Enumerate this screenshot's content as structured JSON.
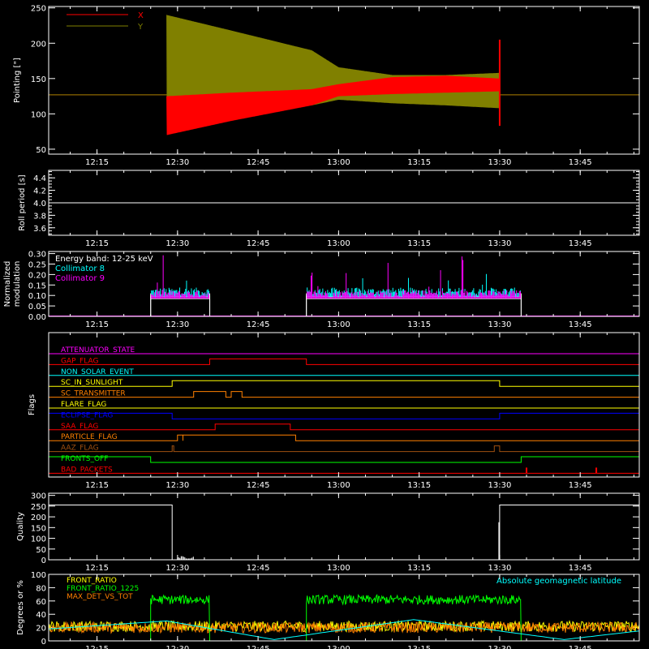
{
  "colors": {
    "background": "#000000",
    "axes": "#ffffff",
    "red": "#ff0000",
    "olive": "#808000",
    "cyan": "#00ffff",
    "magenta": "#ff00ff",
    "green": "#00ff00",
    "orange": "#ff8000",
    "yellow": "#ffff00",
    "blue": "#0000ff",
    "white": "#ffffff",
    "brown": "#a05010"
  },
  "time_axis": {
    "range": [
      "12:06",
      "13:56"
    ],
    "ticks": [
      "12:15",
      "12:30",
      "12:45",
      "13:00",
      "13:15",
      "13:30",
      "13:45"
    ]
  },
  "chart_data": [
    {
      "id": "pointing",
      "type": "line",
      "ylabel": "Pointing [\"]",
      "yticks": [
        50,
        100,
        150,
        200,
        250
      ],
      "ylim": [
        43,
        252
      ],
      "legend": {
        "position": "top-left",
        "entries": [
          "X",
          "Y"
        ]
      },
      "series": [
        {
          "name": "X",
          "color": "red",
          "baseline": 127,
          "start": "12:28",
          "end": "13:30",
          "envelope": {
            "time": [
              "12:28",
              "12:40",
              "12:55",
              "13:00",
              "13:10",
              "13:20",
              "13:30"
            ],
            "low": [
              70,
              90,
              112,
              125,
              128,
              130,
              132
            ],
            "high": [
              125,
              130,
              135,
              142,
              152,
              154,
              150
            ]
          },
          "spike_end": [
            83,
            205
          ]
        },
        {
          "name": "Y",
          "color": "olive",
          "baseline": 127,
          "start": "12:28",
          "end": "13:30",
          "envelope": {
            "time": [
              "12:28",
              "12:40",
              "12:55",
              "13:00",
              "13:10",
              "13:20",
              "13:30"
            ],
            "low": [
              85,
              100,
              112,
              120,
              115,
              112,
              108
            ],
            "high": [
              240,
              218,
              190,
              166,
              155,
              155,
              158
            ]
          }
        }
      ]
    },
    {
      "id": "roll",
      "type": "line",
      "ylabel": "Roll period [s]",
      "yticks": [
        3.6,
        3.8,
        4.0,
        4.2,
        4.4
      ],
      "ylim": [
        3.48,
        4.52
      ],
      "series": [
        {
          "name": "",
          "color": "white",
          "x": [
            "12:06",
            "13:56"
          ],
          "y": [
            4.0,
            4.0
          ]
        }
      ]
    },
    {
      "id": "modulation",
      "type": "line",
      "ylabel": "Normalized modulation",
      "yticks": [
        0.0,
        0.05,
        0.1,
        0.15,
        0.2,
        0.25,
        0.3
      ],
      "ylim": [
        0,
        0.31
      ],
      "annotations": [
        "Energy band: 12-25 keV"
      ],
      "legend": {
        "position": "top-left",
        "entries": [
          "Collimator 8",
          "Collimator 9"
        ]
      },
      "intervals": [
        [
          "12:25",
          "12:36"
        ],
        [
          "12:54",
          "13:34"
        ]
      ],
      "series": [
        {
          "name": "Collimator 8",
          "color": "cyan",
          "typical": 0.11,
          "peak": 0.22
        },
        {
          "name": "Collimator 9",
          "color": "magenta",
          "typical": 0.1,
          "peak": 0.3
        }
      ]
    },
    {
      "id": "flags",
      "type": "line",
      "ylabel": "Flags",
      "series": [
        {
          "name": "ATTENUATOR_STATE",
          "color": "magenta",
          "intervals": []
        },
        {
          "name": "GAP_FLAG",
          "color": "red",
          "intervals": [
            [
              "12:36",
              "12:54"
            ]
          ]
        },
        {
          "name": "NON_SOLAR_EVENT",
          "color": "cyan",
          "intervals": []
        },
        {
          "name": "SC_IN_SUNLIGHT",
          "color": "yellow",
          "intervals": [
            [
              "12:29",
              "13:30"
            ]
          ]
        },
        {
          "name": "SC_TRANSMITTER",
          "color": "orange",
          "intervals": [
            [
              "12:33",
              "12:39"
            ],
            [
              "12:40",
              "12:42"
            ]
          ]
        },
        {
          "name": "FLARE_FLAG",
          "color": "yellow",
          "intervals": []
        },
        {
          "name": "ECLIPSE_FLAG",
          "color": "blue",
          "intervals": [
            [
              "12:06",
              "12:29"
            ],
            [
              "13:30",
              "13:56"
            ]
          ]
        },
        {
          "name": "SAA_FLAG",
          "color": "red",
          "intervals": [
            [
              "12:37",
              "12:51"
            ]
          ]
        },
        {
          "name": "PARTICLE_FLAG",
          "color": "orange",
          "intervals": [
            [
              "12:30",
              "12:31"
            ],
            [
              "12:31",
              "12:52"
            ]
          ]
        },
        {
          "name": "AAZ_FLAG",
          "color": "brown",
          "intervals": [
            [
              "12:29",
              "12:29"
            ],
            [
              "13:29",
              "13:30"
            ]
          ]
        },
        {
          "name": "FRONTS_OFF",
          "color": "green",
          "intervals": [
            [
              "12:06",
              "12:25"
            ],
            [
              "13:34",
              "13:56"
            ]
          ]
        },
        {
          "name": "BAD_PACKETS",
          "color": "red",
          "intervals": [],
          "spikes": [
            "13:35",
            "13:48"
          ]
        }
      ]
    },
    {
      "id": "quality",
      "type": "line",
      "ylabel": "Quality",
      "yticks": [
        0,
        50,
        100,
        150,
        200,
        250,
        300
      ],
      "ylim": [
        0,
        310
      ],
      "series": [
        {
          "name": "",
          "color": "white",
          "x": [
            "12:06",
            "12:29",
            "12:29",
            "13:30",
            "13:30",
            "13:56"
          ],
          "y": [
            255,
            255,
            0,
            0,
            255,
            255
          ]
        }
      ]
    },
    {
      "id": "ratios",
      "type": "line",
      "ylabel": "Degrees or %",
      "yticks": [
        0,
        20,
        40,
        60,
        80,
        100
      ],
      "ylim": [
        0,
        100
      ],
      "legend": {
        "position": "top-left",
        "entries": [
          "FRONT_RATIO",
          "FRONT_RATIO_1225",
          "MAX_DET_VS_TOT"
        ]
      },
      "annotations": [
        "Absolute geomagnetic latitude"
      ],
      "series": [
        {
          "name": "FRONT_RATIO",
          "color": "yellow",
          "typical": 22
        },
        {
          "name": "FRONT_RATIO_1225",
          "color": "green",
          "typical": 62,
          "intervals": [
            [
              "12:25",
              "12:36"
            ],
            [
              "12:54",
              "13:34"
            ]
          ]
        },
        {
          "name": "MAX_DET_VS_TOT",
          "color": "orange",
          "typical": 20
        },
        {
          "name": "Absolute geomagnetic latitude",
          "color": "cyan",
          "x": [
            "12:06",
            "12:28",
            "12:48",
            "13:14",
            "13:42",
            "13:56"
          ],
          "y": [
            18,
            30,
            2,
            32,
            2,
            15
          ]
        }
      ]
    }
  ]
}
